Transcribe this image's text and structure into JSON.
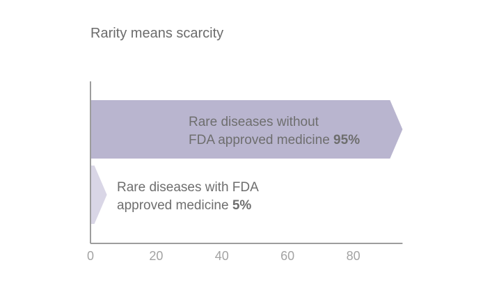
{
  "chart_data": {
    "type": "bar",
    "orientation": "horizontal",
    "title": "Rarity means scarcity",
    "xlabel": "",
    "ylabel": "",
    "xlim": [
      0,
      95
    ],
    "ticks": [
      0,
      20,
      40,
      60,
      80
    ],
    "grid": false,
    "series": [
      {
        "label_lines": [
          "Rare diseases without",
          "FDA approved medicine"
        ],
        "value": 95,
        "value_label": "95%",
        "color": "#b9b5cf"
      },
      {
        "label_lines": [
          "Rare diseases with FDA",
          "approved medicine"
        ],
        "value": 5,
        "value_label": "5%",
        "color": "#d9d6e6"
      }
    ],
    "axis_color": "#9d9d9d"
  }
}
